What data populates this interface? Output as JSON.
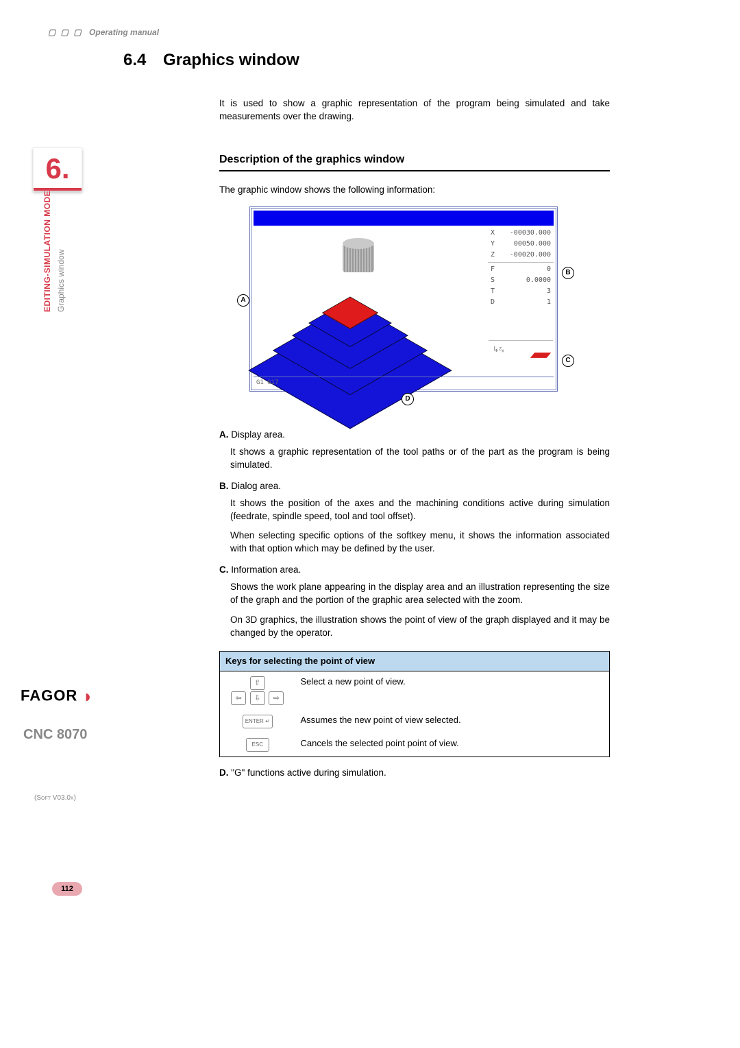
{
  "header": {
    "boxes": "▢ ▢ ▢",
    "title": "Operating manual"
  },
  "section": {
    "num": "6.4",
    "title": "Graphics window"
  },
  "intro": "It is used to show a graphic representation of the program being simulated and take measurements over the drawing.",
  "subheading": "Description of the graphics window",
  "lead": "The graphic window shows the following information:",
  "figure": {
    "coords": {
      "X_lbl": "X",
      "X_val": "-00030.000",
      "Y_lbl": "Y",
      "Y_val": "00050.000",
      "Z_lbl": "Z",
      "Z_val": "-00020.000",
      "F_lbl": "F",
      "F_val": "0",
      "S_lbl": "S",
      "S_val": "0.0000",
      "T_lbl": "T",
      "T_val": "3",
      "D_lbl": "D",
      "D_val": "1"
    },
    "gfunc": "G1 G17",
    "axes_icon": "↳ᶻₓ",
    "callouts": {
      "A": "A",
      "B": "B",
      "C": "C",
      "D": "D"
    },
    "colors": {
      "frame": "#6a76b8",
      "topbar": "#0000ee",
      "slab_blue": "#1414d8",
      "slab_red": "#e01b1b",
      "cylinder": "#bcbcbc"
    }
  },
  "items": {
    "A_lbl": "A.",
    "A_title": "Display area.",
    "A_body": "It shows a graphic representation of the tool paths or of the part as the program is being simulated.",
    "B_lbl": "B.",
    "B_title": "Dialog area.",
    "B_body1": "It shows the position of the axes and the machining conditions active during simulation (feedrate, spindle speed, tool and tool offset).",
    "B_body2": "When selecting specific options of the softkey menu, it shows the information associated with that option which may be defined by the user.",
    "C_lbl": "C.",
    "C_title": "Information area.",
    "C_body1": "Shows the work plane appearing in the display area and an illustration representing the size of the graph and the portion of the graphic area selected with the zoom.",
    "C_body2": "On 3D graphics, the illustration shows the point of view of the graph displayed and it may be changed by the operator."
  },
  "table": {
    "header": "Keys for selecting the point of view",
    "rows": [
      {
        "keys": [
          "⇧",
          "⇦",
          "⇩",
          "⇨"
        ],
        "desc": "Select a new point of view."
      },
      {
        "keys": [
          "ENTER ↵"
        ],
        "desc": "Assumes the new point of view selected."
      },
      {
        "keys": [
          "ESC"
        ],
        "desc": "Cancels the selected point point of view."
      }
    ]
  },
  "item_D": {
    "lbl": "D.",
    "text": "\"G\" functions active during simulation."
  },
  "margin": {
    "chapter": "6.",
    "vred": "EDITING-SIMULATION MODE",
    "vgrey": "Graphics window",
    "logo": "FAGOR",
    "cnc": "CNC 8070",
    "soft": "(Soft V03.0x)",
    "page": "112"
  }
}
